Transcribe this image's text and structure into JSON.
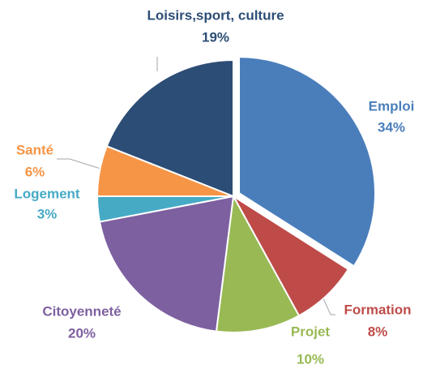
{
  "chart_data": {
    "type": "pie",
    "categories": [
      "Emploi",
      "Formation",
      "Projet",
      "Citoyenneté",
      "Logement",
      "Santé",
      "Loisirs,sport, culture"
    ],
    "values": [
      34,
      8,
      10,
      20,
      3,
      6,
      19
    ],
    "value_labels": [
      "34%",
      "8%",
      "10%",
      "20%",
      "3%",
      "6%",
      "19%"
    ],
    "colors": [
      "#4a7ebb",
      "#be4b48",
      "#98b954",
      "#7d60a0",
      "#46aac5",
      "#f69546",
      "#2c4d75"
    ]
  }
}
